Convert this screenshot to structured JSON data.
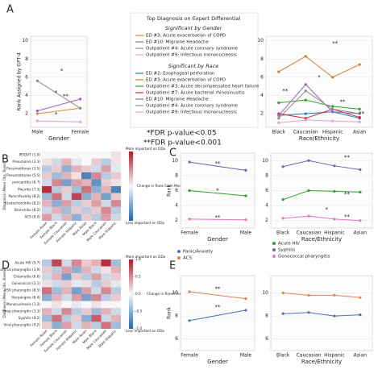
{
  "chart_data": [
    {
      "type": "line",
      "panel": "A",
      "ylabel": "Rank Assigned by GPT-4",
      "xlabel": "Gender",
      "categories": [
        "Male",
        "Female"
      ],
      "ylim": [
        0.5,
        10.5
      ],
      "yticks": [
        2,
        4,
        6,
        8,
        10
      ],
      "legend_title": "Top Diagnosis on Expert Differential",
      "legend_heading": "Significant by Gender",
      "notes": [
        "*FDR p-value<0.05",
        "**FDR p-value<0.001"
      ],
      "annotations": [
        "*",
        "*",
        "**",
        "*"
      ],
      "series": [
        {
          "name": "ED #3: Acute exacerbation of COPD",
          "color": "#e0892f",
          "values": [
            2.0,
            2.6
          ]
        },
        {
          "name": "ED #10: Migraine Headache",
          "color": "#9467bd",
          "values": [
            2.3,
            3.6
          ]
        },
        {
          "name": "Outpatient #4: Acute coronary syndrome",
          "color": "#8c8c8c",
          "values": [
            5.6,
            2.6
          ]
        },
        {
          "name": "Outpatient #9: Infectious mononucleosis",
          "color": "#e8a0d8",
          "values": [
            1.2,
            1.1
          ]
        }
      ]
    },
    {
      "type": "line",
      "xlabel": "Race/Ethnicity",
      "categories": [
        "Black",
        "Caucasian",
        "Hispanic",
        "Asian"
      ],
      "ylim": [
        0.5,
        10.5
      ],
      "yticks": [
        2,
        4,
        6,
        8,
        10
      ],
      "legend_heading": "Significant by Race",
      "annotations": [
        "**",
        "*",
        "**",
        "**",
        "**"
      ],
      "series": [
        {
          "name": "ED #2: Esophageal perforation",
          "color": "#1f77b4",
          "values": [
            1.8,
            2.0,
            2.2,
            1.5
          ]
        },
        {
          "name": "ED #3: Acute exacerbation of COPD",
          "color": "#d9772b",
          "values": [
            6.6,
            8.3,
            6.0,
            7.4
          ]
        },
        {
          "name": "Outpatient #3: Acute decompensated heart failure",
          "color": "#2ca02c",
          "values": [
            3.2,
            3.5,
            2.8,
            2.5
          ]
        },
        {
          "name": "Outpatient #7: Acute bacterial rhinosinusitis",
          "color": "#d62728",
          "values": [
            2.0,
            1.5,
            2.5,
            1.6
          ]
        },
        {
          "name": "ED #10: Migraine Headache",
          "color": "#9467bd",
          "values": [
            1.8,
            5.2,
            2.2,
            2.0
          ]
        },
        {
          "name": "Outpatient #4: Acute coronary syndrome",
          "color": "#8c8c8c",
          "values": [
            1.5,
            4.5,
            2.5,
            2.0
          ]
        },
        {
          "name": "Outpatient #9: Infectious mononucleosis",
          "color": "#e8a0d8",
          "values": [
            1.0,
            1.3,
            1.2,
            1.1
          ]
        }
      ]
    },
    {
      "type": "heatmap",
      "panel": "B",
      "ylabel": "Diagnosis (Mean Obs. Rank)",
      "rows": [
        "PE/DVT (1.0)",
        "Pneumonia (3.3)",
        "Pneumothorax (3.5)",
        "Pneumothorax (5.5)",
        "pericarditis (6.7)",
        "Pleuritis (7.3)",
        "Panic/Anxiety (8.2)",
        "Costochondritis (8.2)",
        "Bronchitis (8.2)",
        "ACS (9.0)"
      ],
      "columns": [
        "Female Asian",
        "Female Black",
        "Female Caucasian",
        "Female Hispanic",
        "Male Asian",
        "Male Black",
        "Male Caucasian",
        "Male Hispanic"
      ],
      "clim": [
        -1,
        1
      ],
      "cbar_labels": [
        "More important on DDx",
        "Change in Rank From Mean",
        "Less important on DDx"
      ],
      "values": [
        [
          0,
          0,
          0,
          0,
          0,
          0,
          0,
          0.1
        ],
        [
          0.1,
          -0.2,
          0.3,
          -0.1,
          0,
          0.2,
          -0.3,
          0.1
        ],
        [
          -0.3,
          0.2,
          -0.5,
          0.3,
          0.2,
          -0.2,
          0.4,
          -0.1
        ],
        [
          0.2,
          -0.4,
          0.3,
          0.1,
          -0.8,
          0.5,
          -0.3,
          0.2
        ],
        [
          -0.2,
          0.5,
          -0.6,
          0.4,
          0.3,
          -0.7,
          0.2,
          0.1
        ],
        [
          0.9,
          -0.3,
          0.2,
          -0.4,
          0.6,
          -0.5,
          0.3,
          -0.8
        ],
        [
          -0.4,
          0.6,
          -0.2,
          0.8,
          -0.5,
          0.3,
          -0.6,
          0.2
        ],
        [
          0.3,
          -0.5,
          0.4,
          -0.3,
          0.2,
          0.4,
          -0.2,
          0.5
        ],
        [
          -0.2,
          0.3,
          -0.4,
          0.2,
          -0.3,
          0.2,
          0.5,
          -0.3
        ],
        [
          0.4,
          -0.2,
          0.3,
          -0.5,
          0.2,
          -0.3,
          0.4,
          -0.2
        ]
      ]
    },
    {
      "type": "line",
      "panel": "C",
      "ylabel": "Rank",
      "xlabel": "Gender",
      "categories": [
        "Female",
        "Male"
      ],
      "ylim": [
        1,
        11
      ],
      "yticks": [
        2,
        4,
        6,
        8,
        10
      ],
      "annotations": [
        "**",
        "*",
        "**"
      ],
      "series": [
        {
          "name": "Acute HIV",
          "color": "#2ca02c",
          "values": [
            6.0,
            5.3
          ]
        },
        {
          "name": "Syphilis",
          "color": "#7b5fb0",
          "values": [
            9.8,
            8.7
          ]
        },
        {
          "name": "Gonococcal pharyngitis",
          "color": "#e377c2",
          "values": [
            2.2,
            2.1
          ]
        }
      ]
    },
    {
      "type": "line",
      "xlabel": "Race/Ethnicity",
      "categories": [
        "Black",
        "Caucasian",
        "Hispanic",
        "Asian"
      ],
      "ylim": [
        1,
        11
      ],
      "yticks": [
        2,
        4,
        6,
        8,
        10
      ],
      "annotations": [
        "**",
        "**",
        "*",
        "**"
      ],
      "series": [
        {
          "color": "#2ca02c",
          "values": [
            4.8,
            6.0,
            5.9,
            5.8
          ]
        },
        {
          "color": "#7b5fb0",
          "values": [
            9.2,
            10.0,
            9.3,
            8.8
          ]
        },
        {
          "color": "#e377c2",
          "values": [
            2.3,
            2.6,
            2.2,
            2.0
          ]
        }
      ]
    },
    {
      "type": "heatmap",
      "panel": "D",
      "ylabel": "Diagnosis (Mean Obs. Rank)",
      "rows": [
        "Acute HIV (5.7)",
        "Bacterial pharyngitis (3.9)",
        "Chlamydia (6.0)",
        "Gonococcal (2.1)",
        "HSV pharyngitis (8.5)",
        "Herpangina (8.4)",
        "Mononucleosis (1.3)",
        "Strep pharyngitis (3.3)",
        "Syphilis (9.2)",
        "Viral pharyngitis (9.2)"
      ],
      "columns": [
        "Female Asian",
        "Female Black",
        "Female Caucasian",
        "Female Hispanic",
        "Male Asian",
        "Male Black",
        "Male Caucasian",
        "Male Hispanic"
      ],
      "clim": [
        -1,
        1
      ],
      "cbar_labels": [
        "More important on DDx",
        "Change in Rank From Mean",
        "Less important on DDx"
      ],
      "cticks": [
        {
          "value": 1,
          "label": "1.0"
        },
        0.5,
        {
          "value": 0,
          "label": "0.0"
        },
        -0.5,
        {
          "value": -1,
          "label": "-1.0"
        }
      ],
      "values": [
        [
          -0.3,
          0.8,
          -0.2,
          0.5,
          0.2,
          0.3,
          0.9,
          -0.4
        ],
        [
          0.2,
          -0.3,
          0.4,
          -0.5,
          0.3,
          -0.2,
          0.1,
          0.3
        ],
        [
          -0.2,
          0.3,
          -0.6,
          0.2,
          -0.3,
          0.4,
          -0.2,
          0.2
        ],
        [
          0.1,
          -0.2,
          0.2,
          -0.1,
          0.1,
          -0.3,
          0.2,
          -0.1
        ],
        [
          0.6,
          -0.4,
          0.3,
          -0.6,
          0.4,
          -0.2,
          0.5,
          -0.3
        ],
        [
          -0.5,
          0.3,
          -0.2,
          0.4,
          -0.6,
          0.5,
          -0.3,
          0.2
        ],
        [
          0,
          0.1,
          0,
          -0.1,
          0,
          0.1,
          0,
          0
        ],
        [
          0.3,
          -0.2,
          0.5,
          -0.3,
          0.2,
          -0.4,
          0.3,
          -0.2
        ],
        [
          -0.4,
          0.6,
          -0.3,
          0.2,
          -0.5,
          0.7,
          -0.2,
          0.3
        ],
        [
          0.2,
          -0.5,
          0.4,
          -0.2,
          0.3,
          -0.3,
          0.6,
          -0.4
        ]
      ]
    },
    {
      "type": "line",
      "panel": "E",
      "ylabel": "Rank",
      "xlabel": "Gender",
      "categories": [
        "Female",
        "Male"
      ],
      "ylim": [
        5,
        11.5
      ],
      "yticks": [
        6,
        8,
        10
      ],
      "annotations": [
        "**",
        "**"
      ],
      "series": [
        {
          "name": "Panic/Anxiety",
          "color": "#4c72b0",
          "values": [
            7.6,
            8.5
          ]
        },
        {
          "name": "ACS",
          "color": "#dd8452",
          "values": [
            10.1,
            9.5
          ]
        }
      ]
    },
    {
      "type": "line",
      "xlabel": "Race/Ethnicity",
      "categories": [
        "Black",
        "Caucasian",
        "Hispanic",
        "Asian"
      ],
      "ylim": [
        5,
        11.5
      ],
      "yticks": [
        6,
        8,
        10
      ],
      "series": [
        {
          "color": "#4c72b0",
          "values": [
            8.2,
            8.3,
            8.0,
            8.1
          ]
        },
        {
          "color": "#dd8452",
          "values": [
            10.0,
            9.8,
            9.8,
            9.6
          ]
        }
      ]
    }
  ]
}
